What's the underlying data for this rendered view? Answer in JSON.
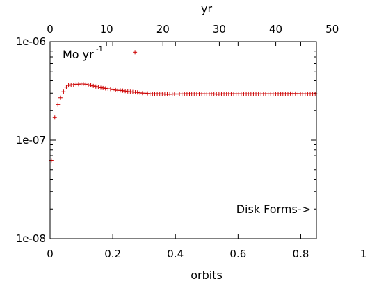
{
  "chart_data": {
    "type": "scatter",
    "title": "",
    "xlabel": "orbits",
    "x2label": "yr",
    "ylabel": "",
    "xlim": [
      0,
      0.85
    ],
    "x2lim": [
      0,
      47.2
    ],
    "ylim": [
      1e-08,
      1e-06
    ],
    "ylog": true,
    "grid": false,
    "marker": "+",
    "marker_color": "#cc0000",
    "x_ticks": [
      "0",
      "0.2",
      "0.4",
      "0.6",
      "0.8",
      "1"
    ],
    "x_tick_values": [
      0,
      0.2,
      0.4,
      0.6,
      0.8,
      1.0
    ],
    "x2_ticks": [
      "0",
      "10",
      "20",
      "30",
      "40",
      "50"
    ],
    "x2_tick_values": [
      0,
      10,
      20,
      30,
      40,
      50
    ],
    "y_ticks": [
      "1e-06",
      "1e-07",
      "1e-08"
    ],
    "y_tick_values": [
      1e-06,
      1e-07,
      1e-08
    ],
    "annotations": {
      "units_main": "Mo yr",
      "units_sup": "-1",
      "disk_note": "Disk Forms->"
    },
    "series": [
      {
        "x": [
          0.004,
          0.015,
          0.025,
          0.033,
          0.043,
          0.052,
          0.059,
          0.067,
          0.075,
          0.083,
          0.091,
          0.099,
          0.106,
          0.114,
          0.122,
          0.13,
          0.138,
          0.146,
          0.154,
          0.162,
          0.169,
          0.177,
          0.185,
          0.193,
          0.201,
          0.209,
          0.216,
          0.224,
          0.232,
          0.24,
          0.248,
          0.256,
          0.264,
          0.272,
          0.279,
          0.287,
          0.295,
          0.303,
          0.311,
          0.319,
          0.327,
          0.334,
          0.342,
          0.35,
          0.358,
          0.366,
          0.374,
          0.382,
          0.39,
          0.397,
          0.405,
          0.413,
          0.421,
          0.429,
          0.437,
          0.445,
          0.452,
          0.46,
          0.468,
          0.476,
          0.484,
          0.492,
          0.5,
          0.508,
          0.515,
          0.523,
          0.531,
          0.539,
          0.547,
          0.555,
          0.563,
          0.57,
          0.578,
          0.586,
          0.594,
          0.602,
          0.61,
          0.618,
          0.626,
          0.633,
          0.641,
          0.649,
          0.657,
          0.665,
          0.673,
          0.681,
          0.688,
          0.696,
          0.704,
          0.712,
          0.72,
          0.728,
          0.736,
          0.743,
          0.751,
          0.759,
          0.767,
          0.775,
          0.783,
          0.791,
          0.799,
          0.806,
          0.814,
          0.822,
          0.83,
          0.838,
          0.846,
          0.271
        ],
        "y": [
          6.2e-08,
          1.7e-07,
          2.3e-07,
          2.7e-07,
          3.1e-07,
          3.45e-07,
          3.6e-07,
          3.65e-07,
          3.65e-07,
          3.7e-07,
          3.7e-07,
          3.72e-07,
          3.72e-07,
          3.7e-07,
          3.65e-07,
          3.6e-07,
          3.55e-07,
          3.5e-07,
          3.45e-07,
          3.4e-07,
          3.38e-07,
          3.35e-07,
          3.32e-07,
          3.3e-07,
          3.25e-07,
          3.22e-07,
          3.2e-07,
          3.2e-07,
          3.18e-07,
          3.15e-07,
          3.12e-07,
          3.1e-07,
          3.08e-07,
          3.06e-07,
          3.05e-07,
          3.02e-07,
          3e-07,
          3e-07,
          2.98e-07,
          2.96e-07,
          2.95e-07,
          2.95e-07,
          2.96e-07,
          2.95e-07,
          2.95e-07,
          2.93e-07,
          2.92e-07,
          2.92e-07,
          2.93e-07,
          2.95e-07,
          2.93e-07,
          2.95e-07,
          2.95e-07,
          2.95e-07,
          2.96e-07,
          2.96e-07,
          2.95e-07,
          2.95e-07,
          2.95e-07,
          2.96e-07,
          2.96e-07,
          2.96e-07,
          2.95e-07,
          2.95e-07,
          2.96e-07,
          2.95e-07,
          2.93e-07,
          2.93e-07,
          2.95e-07,
          2.95e-07,
          2.95e-07,
          2.95e-07,
          2.96e-07,
          2.96e-07,
          2.96e-07,
          2.96e-07,
          2.95e-07,
          2.95e-07,
          2.95e-07,
          2.95e-07,
          2.95e-07,
          2.95e-07,
          2.95e-07,
          2.95e-07,
          2.95e-07,
          2.96e-07,
          2.96e-07,
          2.96e-07,
          2.96e-07,
          2.95e-07,
          2.95e-07,
          2.96e-07,
          2.96e-07,
          2.96e-07,
          2.96e-07,
          2.96e-07,
          2.97e-07,
          2.97e-07,
          2.97e-07,
          2.97e-07,
          2.96e-07,
          2.96e-07,
          2.96e-07,
          2.96e-07,
          2.96e-07,
          2.96e-07,
          2.96e-07,
          7.8e-07
        ]
      }
    ]
  }
}
